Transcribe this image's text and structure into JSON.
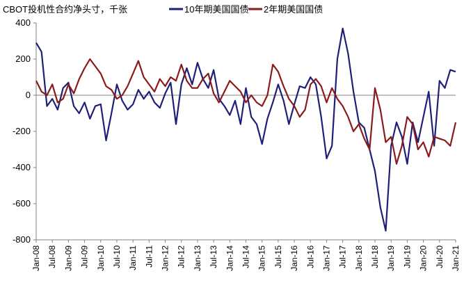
{
  "chart_data": {
    "type": "line",
    "title": "CBOT投机性合约净头寸，千张",
    "ylim": [
      -800,
      400
    ],
    "yticks": [
      400,
      200,
      0,
      -200,
      -400,
      -600,
      -800
    ],
    "x_range": [
      "2008-01",
      "2021-01"
    ],
    "xticks": [
      "Jan-08",
      "Jul-08",
      "Jan-09",
      "Jul-09",
      "Jan-10",
      "Jul-10",
      "Jan-11",
      "Jul-11",
      "Jan-12",
      "Jul-12",
      "Jan-13",
      "Jul-13",
      "Jan-14",
      "Jul-14",
      "Jan-15",
      "Jul-15",
      "Jan-16",
      "Jul-16",
      "Jan-17",
      "Jul-17",
      "Jan-18",
      "Jul-18",
      "Jan-19",
      "Jul-19",
      "Jan-20",
      "Jul-20",
      "Jan-21"
    ],
    "legend_position": "top",
    "grid": false,
    "series": [
      {
        "name": "10年期美国国债",
        "color": "#1f1f7a",
        "points": [
          [
            "2008-01",
            290
          ],
          [
            "2008-03",
            240
          ],
          [
            "2008-05",
            -60
          ],
          [
            "2008-07",
            -20
          ],
          [
            "2008-09",
            -80
          ],
          [
            "2008-11",
            40
          ],
          [
            "2009-01",
            70
          ],
          [
            "2009-03",
            -60
          ],
          [
            "2009-05",
            -100
          ],
          [
            "2009-07",
            -40
          ],
          [
            "2009-09",
            -130
          ],
          [
            "2009-11",
            -60
          ],
          [
            "2010-01",
            -50
          ],
          [
            "2010-03",
            -250
          ],
          [
            "2010-05",
            -100
          ],
          [
            "2010-07",
            60
          ],
          [
            "2010-09",
            -30
          ],
          [
            "2010-11",
            -80
          ],
          [
            "2011-01",
            -50
          ],
          [
            "2011-03",
            30
          ],
          [
            "2011-05",
            -20
          ],
          [
            "2011-07",
            20
          ],
          [
            "2011-09",
            -40
          ],
          [
            "2011-11",
            -70
          ],
          [
            "2012-01",
            10
          ],
          [
            "2012-03",
            70
          ],
          [
            "2012-05",
            -160
          ],
          [
            "2012-07",
            60
          ],
          [
            "2012-09",
            150
          ],
          [
            "2012-11",
            60
          ],
          [
            "2013-01",
            180
          ],
          [
            "2013-03",
            90
          ],
          [
            "2013-05",
            40
          ],
          [
            "2013-07",
            140
          ],
          [
            "2013-09",
            -20
          ],
          [
            "2013-11",
            -60
          ],
          [
            "2014-01",
            -110
          ],
          [
            "2014-03",
            -30
          ],
          [
            "2014-05",
            -160
          ],
          [
            "2014-07",
            40
          ],
          [
            "2014-09",
            -120
          ],
          [
            "2014-11",
            -160
          ],
          [
            "2015-01",
            -270
          ],
          [
            "2015-03",
            -130
          ],
          [
            "2015-05",
            -40
          ],
          [
            "2015-07",
            60
          ],
          [
            "2015-09",
            -30
          ],
          [
            "2015-11",
            -160
          ],
          [
            "2016-01",
            -50
          ],
          [
            "2016-03",
            50
          ],
          [
            "2016-05",
            40
          ],
          [
            "2016-07",
            100
          ],
          [
            "2016-09",
            60
          ],
          [
            "2016-11",
            -120
          ],
          [
            "2017-01",
            -350
          ],
          [
            "2017-03",
            -280
          ],
          [
            "2017-05",
            200
          ],
          [
            "2017-07",
            370
          ],
          [
            "2017-09",
            230
          ],
          [
            "2017-11",
            20
          ],
          [
            "2018-01",
            -150
          ],
          [
            "2018-03",
            -180
          ],
          [
            "2018-05",
            -300
          ],
          [
            "2018-07",
            -420
          ],
          [
            "2018-09",
            -620
          ],
          [
            "2018-11",
            -750
          ],
          [
            "2019-01",
            -280
          ],
          [
            "2019-03",
            -150
          ],
          [
            "2019-05",
            -230
          ],
          [
            "2019-07",
            -380
          ],
          [
            "2019-09",
            -150
          ],
          [
            "2019-11",
            -260
          ],
          [
            "2020-01",
            -120
          ],
          [
            "2020-03",
            20
          ],
          [
            "2020-05",
            -280
          ],
          [
            "2020-07",
            80
          ],
          [
            "2020-09",
            40
          ],
          [
            "2020-11",
            140
          ],
          [
            "2021-01",
            130
          ]
        ]
      },
      {
        "name": "2年期美国国债",
        "color": "#8b1a1a",
        "points": [
          [
            "2008-01",
            80
          ],
          [
            "2008-03",
            20
          ],
          [
            "2008-05",
            0
          ],
          [
            "2008-07",
            60
          ],
          [
            "2008-09",
            -40
          ],
          [
            "2008-11",
            -20
          ],
          [
            "2009-01",
            60
          ],
          [
            "2009-03",
            10
          ],
          [
            "2009-05",
            90
          ],
          [
            "2009-07",
            150
          ],
          [
            "2009-09",
            200
          ],
          [
            "2009-11",
            160
          ],
          [
            "2010-01",
            120
          ],
          [
            "2010-03",
            50
          ],
          [
            "2010-05",
            30
          ],
          [
            "2010-07",
            -20
          ],
          [
            "2010-09",
            0
          ],
          [
            "2010-11",
            50
          ],
          [
            "2011-01",
            120
          ],
          [
            "2011-03",
            190
          ],
          [
            "2011-05",
            100
          ],
          [
            "2011-07",
            60
          ],
          [
            "2011-09",
            20
          ],
          [
            "2011-11",
            90
          ],
          [
            "2012-01",
            50
          ],
          [
            "2012-03",
            100
          ],
          [
            "2012-05",
            80
          ],
          [
            "2012-07",
            170
          ],
          [
            "2012-09",
            80
          ],
          [
            "2012-11",
            40
          ],
          [
            "2013-01",
            40
          ],
          [
            "2013-03",
            90
          ],
          [
            "2013-05",
            120
          ],
          [
            "2013-07",
            10
          ],
          [
            "2013-09",
            -40
          ],
          [
            "2013-11",
            20
          ],
          [
            "2014-01",
            80
          ],
          [
            "2014-03",
            50
          ],
          [
            "2014-05",
            20
          ],
          [
            "2014-07",
            -40
          ],
          [
            "2014-09",
            0
          ],
          [
            "2014-11",
            -40
          ],
          [
            "2015-01",
            -60
          ],
          [
            "2015-03",
            0
          ],
          [
            "2015-05",
            170
          ],
          [
            "2015-07",
            130
          ],
          [
            "2015-09",
            50
          ],
          [
            "2015-11",
            -20
          ],
          [
            "2016-01",
            -60
          ],
          [
            "2016-03",
            -120
          ],
          [
            "2016-05",
            -80
          ],
          [
            "2016-07",
            60
          ],
          [
            "2016-09",
            90
          ],
          [
            "2016-11",
            50
          ],
          [
            "2017-01",
            -40
          ],
          [
            "2017-03",
            40
          ],
          [
            "2017-05",
            -20
          ],
          [
            "2017-07",
            -60
          ],
          [
            "2017-09",
            -120
          ],
          [
            "2017-11",
            -200
          ],
          [
            "2018-01",
            -160
          ],
          [
            "2018-03",
            -240
          ],
          [
            "2018-05",
            -300
          ],
          [
            "2018-07",
            40
          ],
          [
            "2018-09",
            -80
          ],
          [
            "2018-11",
            -260
          ],
          [
            "2019-01",
            -230
          ],
          [
            "2019-03",
            -380
          ],
          [
            "2019-05",
            -280
          ],
          [
            "2019-07",
            -120
          ],
          [
            "2019-09",
            -160
          ],
          [
            "2019-11",
            -300
          ],
          [
            "2020-01",
            -260
          ],
          [
            "2020-03",
            -340
          ],
          [
            "2020-05",
            -230
          ],
          [
            "2020-07",
            -240
          ],
          [
            "2020-09",
            -250
          ],
          [
            "2020-11",
            -280
          ],
          [
            "2021-01",
            -150
          ]
        ]
      }
    ]
  }
}
